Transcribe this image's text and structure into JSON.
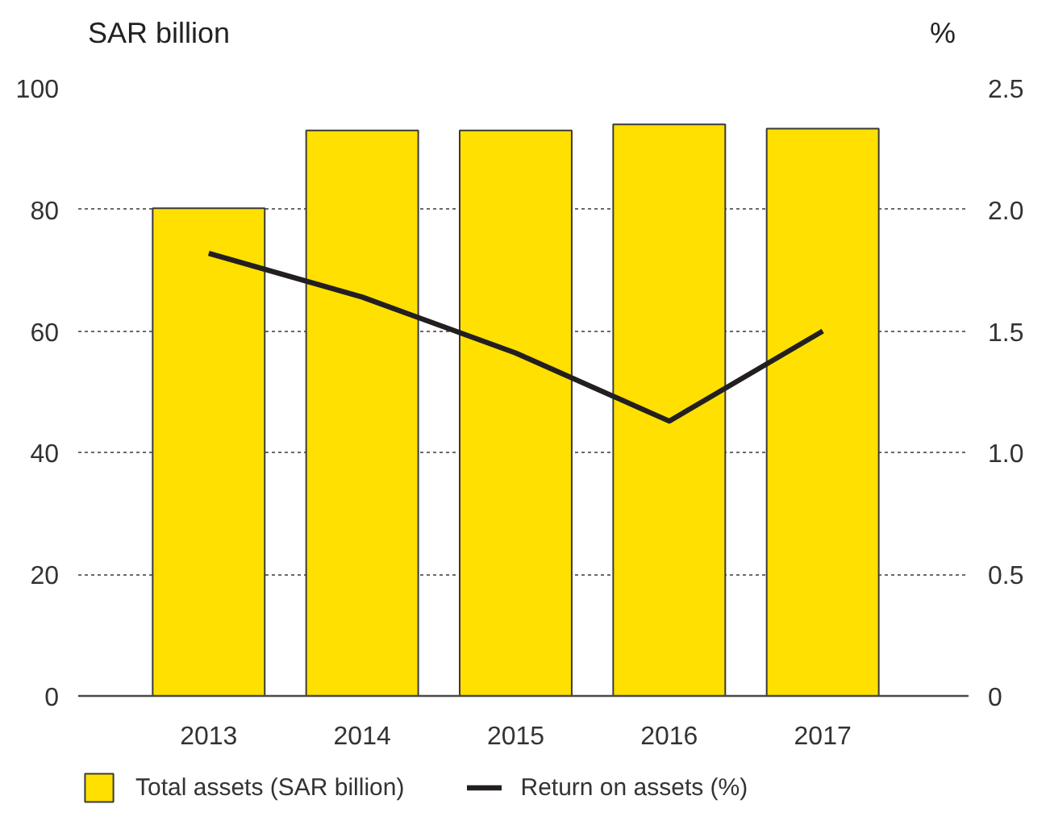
{
  "chart_data": {
    "type": "bar",
    "categories": [
      "2013",
      "2014",
      "2015",
      "2016",
      "2017"
    ],
    "ylabel": "SAR billion",
    "y2label": "%",
    "series": [
      {
        "name": "Total assets (SAR billion)",
        "color": "#ffe000",
        "values": [
          80.2,
          93.0,
          93.0,
          94.0,
          93.3
        ]
      },
      {
        "name": "Return on assets (%)",
        "type": "line",
        "axis": "y2",
        "color": "#231f20",
        "values": [
          1.82,
          1.64,
          1.41,
          1.13,
          1.5
        ]
      }
    ],
    "ylim": [
      0,
      100
    ],
    "yticks": [
      0,
      20,
      40,
      60,
      80,
      100
    ],
    "y2lim": [
      0,
      2.5
    ],
    "y2ticks": [
      0,
      0.5,
      {
        "value": 1,
        "label": "1.0"
      },
      1.5,
      {
        "value": 2,
        "label": "2.0"
      },
      2.5
    ],
    "grid": "y",
    "legend": "bottom"
  }
}
